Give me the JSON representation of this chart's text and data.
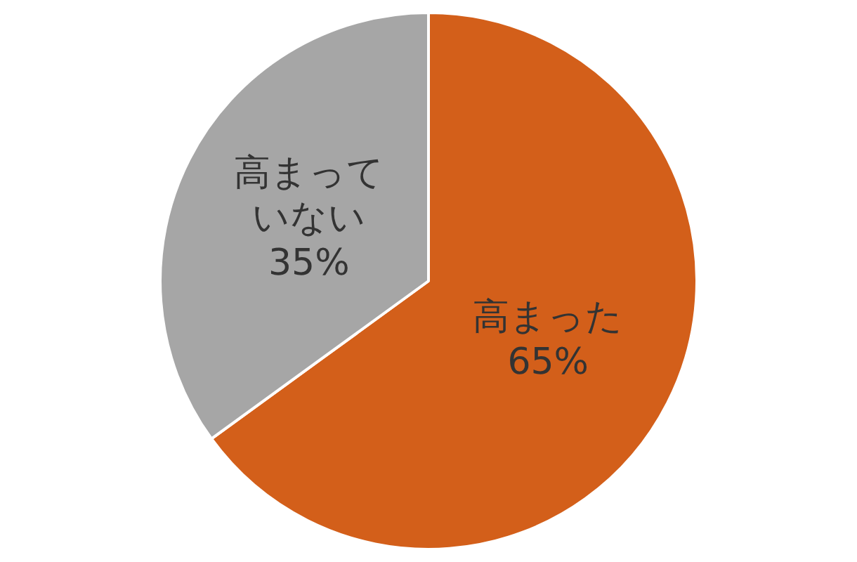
{
  "chart_data": {
    "type": "pie",
    "categories": [
      "高まった",
      "高まっていない"
    ],
    "values": [
      65,
      35
    ],
    "colors": [
      "#d35f1a",
      "#a6a6a6"
    ],
    "value_labels": [
      "65%",
      "35%"
    ],
    "legend": false
  }
}
